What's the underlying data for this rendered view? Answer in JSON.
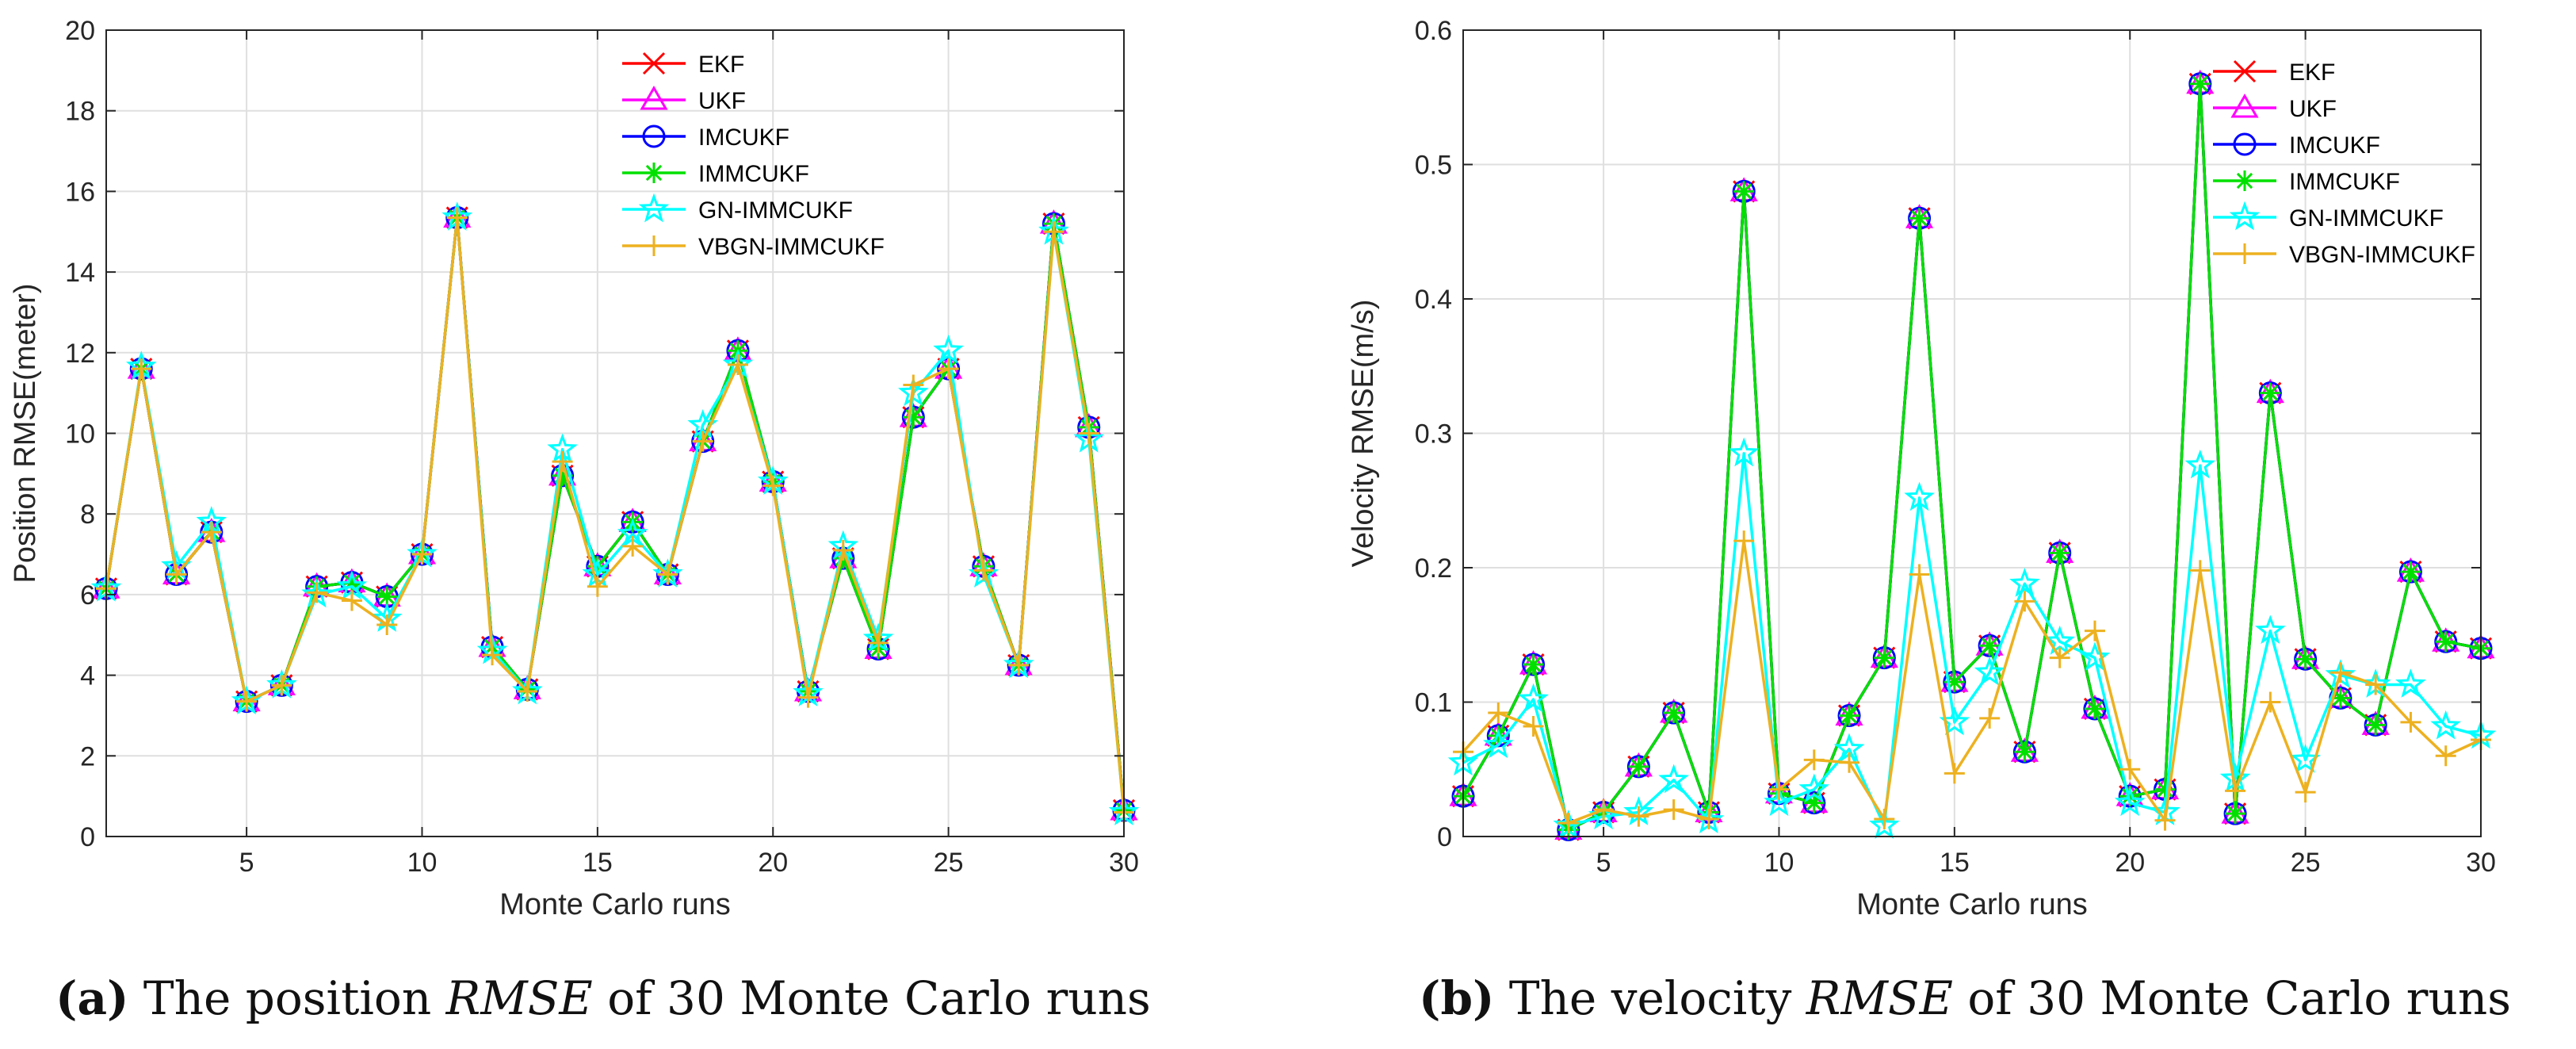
{
  "figure_captions": [
    {
      "letter": "(a)",
      "pre": "The position",
      "math": "RMSE",
      "post": "of 30 Monte Carlo runs"
    },
    {
      "letter": "(b)",
      "pre": "The velocity",
      "math": "RMSE",
      "post": "of 30 Monte Carlo runs"
    }
  ],
  "chart_data": [
    {
      "type": "line",
      "title": "",
      "xlabel": "Monte Carlo runs",
      "ylabel": "Position RMSE(meter)",
      "xlim": [
        1,
        30
      ],
      "ylim": [
        0,
        20
      ],
      "xticks": [
        5,
        10,
        15,
        20,
        25,
        30
      ],
      "yticks": [
        0,
        2,
        4,
        6,
        8,
        10,
        12,
        14,
        16,
        18,
        20
      ],
      "ytick_labels": [
        "0",
        "2",
        "4",
        "6",
        "8",
        "10",
        "12",
        "14",
        "16",
        "18",
        "20"
      ],
      "grid": true,
      "legend_position": "top-center",
      "x": [
        1,
        2,
        3,
        4,
        5,
        6,
        7,
        8,
        9,
        10,
        11,
        12,
        13,
        14,
        15,
        16,
        17,
        18,
        19,
        20,
        21,
        22,
        23,
        24,
        25,
        26,
        27,
        28,
        29,
        30
      ],
      "series": [
        {
          "name": "EKF",
          "color": "#ff0000",
          "marker": "x",
          "values": [
            6.15,
            11.6,
            6.5,
            7.55,
            3.35,
            3.75,
            6.2,
            6.3,
            5.95,
            7.0,
            15.35,
            4.7,
            3.65,
            8.95,
            6.7,
            7.8,
            6.5,
            9.8,
            12.05,
            8.8,
            3.6,
            6.9,
            4.65,
            10.4,
            11.6,
            6.7,
            4.25,
            15.2,
            10.15,
            0.65
          ]
        },
        {
          "name": "UKF",
          "color": "#ff00ff",
          "marker": "triangle",
          "values": [
            6.15,
            11.6,
            6.5,
            7.55,
            3.35,
            3.75,
            6.2,
            6.3,
            5.95,
            7.0,
            15.35,
            4.7,
            3.65,
            8.95,
            6.7,
            7.8,
            6.5,
            9.8,
            12.05,
            8.8,
            3.6,
            6.9,
            4.65,
            10.4,
            11.6,
            6.7,
            4.25,
            15.2,
            10.15,
            0.65
          ]
        },
        {
          "name": "IMCUKF",
          "color": "#0000ff",
          "marker": "circle",
          "values": [
            6.15,
            11.6,
            6.5,
            7.55,
            3.35,
            3.75,
            6.2,
            6.3,
            5.95,
            7.0,
            15.35,
            4.7,
            3.65,
            8.95,
            6.7,
            7.8,
            6.5,
            9.8,
            12.05,
            8.8,
            3.6,
            6.9,
            4.65,
            10.4,
            11.6,
            6.7,
            4.25,
            15.2,
            10.15,
            0.65
          ]
        },
        {
          "name": "IMMCUKF",
          "color": "#00e000",
          "marker": "asterisk",
          "values": [
            6.15,
            11.6,
            6.5,
            7.55,
            3.35,
            3.75,
            6.2,
            6.3,
            5.95,
            7.0,
            15.35,
            4.7,
            3.65,
            8.95,
            6.7,
            7.8,
            6.5,
            9.8,
            12.05,
            8.8,
            3.6,
            6.9,
            4.65,
            10.4,
            11.6,
            6.7,
            4.25,
            15.2,
            10.15,
            0.65
          ]
        },
        {
          "name": "GN-IMMCUKF",
          "color": "#00ffff",
          "marker": "star",
          "values": [
            6.15,
            11.65,
            6.7,
            7.8,
            3.35,
            3.75,
            6.0,
            6.2,
            5.4,
            7.0,
            15.35,
            4.6,
            3.6,
            9.6,
            6.5,
            7.5,
            6.5,
            10.2,
            11.7,
            8.8,
            3.55,
            7.2,
            4.9,
            11.0,
            12.05,
            6.5,
            4.25,
            15.0,
            9.85,
            0.6
          ]
        },
        {
          "name": "VBGN-IMMCUKF",
          "color": "#edb120",
          "marker": "plus",
          "values": [
            6.15,
            11.6,
            6.5,
            7.55,
            3.35,
            3.75,
            6.05,
            5.85,
            5.25,
            7.0,
            15.35,
            4.5,
            3.6,
            9.3,
            6.2,
            7.2,
            6.5,
            9.8,
            11.7,
            8.7,
            3.45,
            7.1,
            4.8,
            11.2,
            11.6,
            6.6,
            4.25,
            15.0,
            10.0,
            0.6
          ]
        }
      ]
    },
    {
      "type": "line",
      "title": "",
      "xlabel": "Monte Carlo runs",
      "ylabel": "Velocity RMSE(m/s)",
      "xlim": [
        1,
        30
      ],
      "ylim": [
        0,
        0.6
      ],
      "xticks": [
        5,
        10,
        15,
        20,
        25,
        30
      ],
      "yticks": [
        0,
        0.1,
        0.2,
        0.3,
        0.4,
        0.5,
        0.6
      ],
      "ytick_labels": [
        "0",
        "0.1",
        "0.2",
        "0.3",
        "0.4",
        "0.5",
        "0.6"
      ],
      "grid": true,
      "legend_position": "top-right",
      "x": [
        1,
        2,
        3,
        4,
        5,
        6,
        7,
        8,
        9,
        10,
        11,
        12,
        13,
        14,
        15,
        16,
        17,
        18,
        19,
        20,
        21,
        22,
        23,
        24,
        25,
        26,
        27,
        28,
        29,
        30
      ],
      "series": [
        {
          "name": "EKF",
          "color": "#ff0000",
          "marker": "x",
          "values": [
            0.03,
            0.075,
            0.128,
            0.005,
            0.018,
            0.052,
            0.092,
            0.018,
            0.48,
            0.032,
            0.025,
            0.09,
            0.133,
            0.46,
            0.115,
            0.142,
            0.063,
            0.211,
            0.095,
            0.03,
            0.035,
            0.56,
            0.017,
            0.33,
            0.132,
            0.103,
            0.083,
            0.197,
            0.145,
            0.14
          ]
        },
        {
          "name": "UKF",
          "color": "#ff00ff",
          "marker": "triangle",
          "values": [
            0.03,
            0.075,
            0.128,
            0.005,
            0.018,
            0.052,
            0.092,
            0.018,
            0.48,
            0.032,
            0.025,
            0.09,
            0.133,
            0.46,
            0.115,
            0.142,
            0.063,
            0.211,
            0.095,
            0.03,
            0.035,
            0.56,
            0.017,
            0.33,
            0.132,
            0.103,
            0.083,
            0.197,
            0.145,
            0.14
          ]
        },
        {
          "name": "IMCUKF",
          "color": "#0000ff",
          "marker": "circle",
          "values": [
            0.03,
            0.075,
            0.128,
            0.005,
            0.018,
            0.052,
            0.092,
            0.018,
            0.48,
            0.032,
            0.025,
            0.09,
            0.133,
            0.46,
            0.115,
            0.142,
            0.063,
            0.211,
            0.095,
            0.03,
            0.035,
            0.56,
            0.017,
            0.33,
            0.132,
            0.103,
            0.083,
            0.197,
            0.145,
            0.14
          ]
        },
        {
          "name": "IMMCUKF",
          "color": "#00e000",
          "marker": "asterisk",
          "values": [
            0.03,
            0.075,
            0.128,
            0.005,
            0.018,
            0.052,
            0.092,
            0.018,
            0.48,
            0.032,
            0.025,
            0.09,
            0.133,
            0.46,
            0.115,
            0.142,
            0.063,
            0.211,
            0.095,
            0.03,
            0.035,
            0.56,
            0.017,
            0.33,
            0.132,
            0.103,
            0.083,
            0.197,
            0.145,
            0.14
          ]
        },
        {
          "name": "GN-IMMCUKF",
          "color": "#00ffff",
          "marker": "star",
          "values": [
            0.055,
            0.068,
            0.102,
            0.008,
            0.015,
            0.018,
            0.042,
            0.012,
            0.285,
            0.025,
            0.035,
            0.065,
            0.008,
            0.252,
            0.085,
            0.122,
            0.188,
            0.145,
            0.133,
            0.025,
            0.018,
            0.276,
            0.043,
            0.153,
            0.057,
            0.12,
            0.113,
            0.113,
            0.082,
            0.075
          ]
        },
        {
          "name": "VBGN-IMMCUKF",
          "color": "#edb120",
          "marker": "plus",
          "values": [
            0.063,
            0.092,
            0.082,
            0.01,
            0.02,
            0.015,
            0.02,
            0.013,
            0.22,
            0.035,
            0.057,
            0.055,
            0.013,
            0.195,
            0.047,
            0.088,
            0.175,
            0.133,
            0.153,
            0.05,
            0.012,
            0.198,
            0.034,
            0.1,
            0.033,
            0.122,
            0.113,
            0.085,
            0.06,
            0.072
          ]
        }
      ]
    }
  ]
}
